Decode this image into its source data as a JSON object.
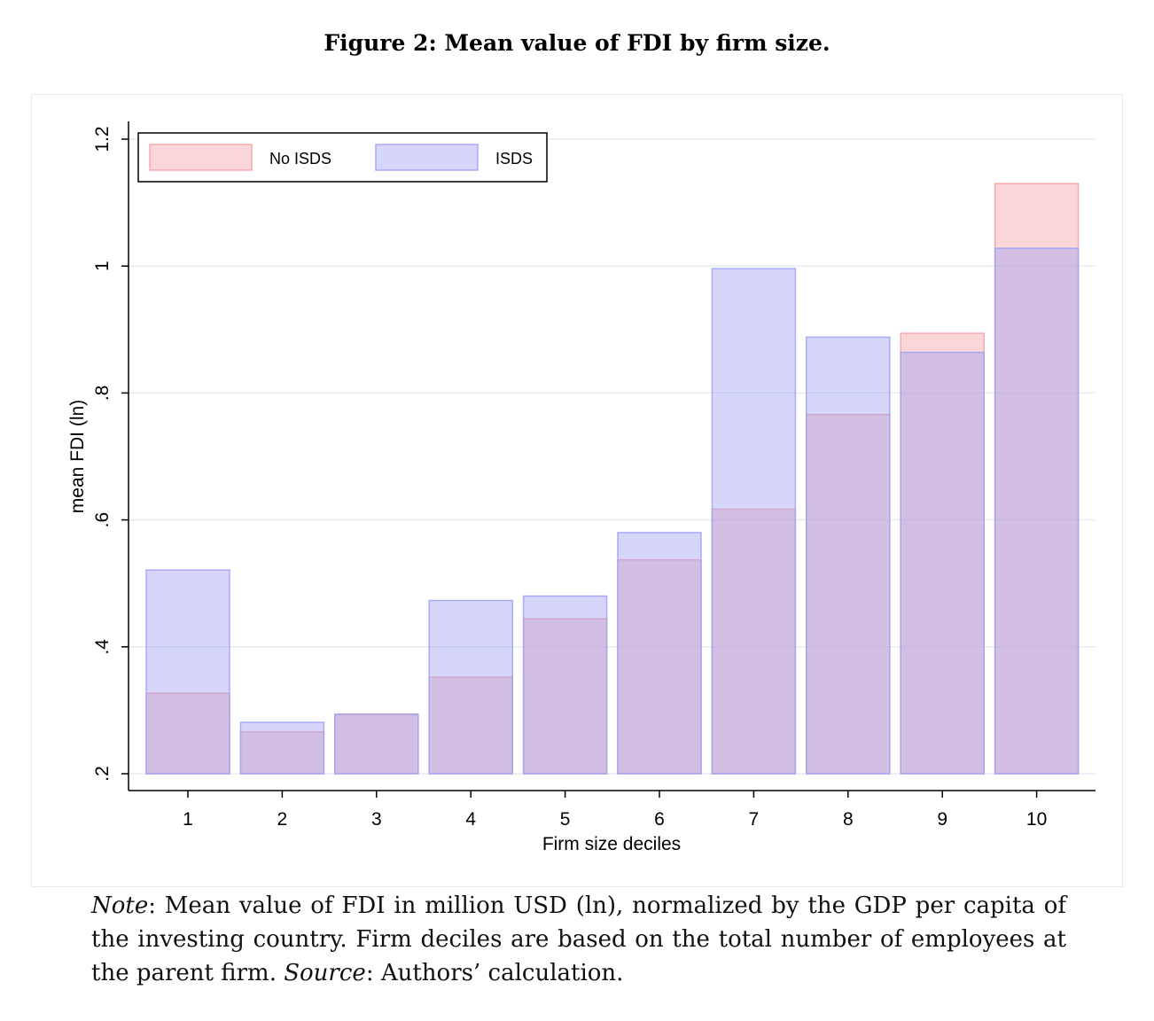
{
  "figure": {
    "title": "Figure 2: Mean value of FDI by firm size."
  },
  "chart_data": {
    "type": "bar",
    "xlabel": "Firm size deciles",
    "ylabel": "mean FDI (ln)",
    "ylim": [
      0.2,
      1.2
    ],
    "yticks": [
      0.2,
      0.4,
      0.6,
      0.8,
      1.0,
      1.2
    ],
    "ytick_labels": [
      ".2",
      ".4",
      ".6",
      ".8",
      "1",
      "1.2"
    ],
    "categories": [
      "1",
      "2",
      "3",
      "4",
      "5",
      "6",
      "7",
      "8",
      "9",
      "10"
    ],
    "grid": true,
    "legend_position": "top-left",
    "series": [
      {
        "name": "No ISDS",
        "color": "#f4a3a8",
        "values": [
          0.327,
          0.266,
          0.293,
          0.352,
          0.444,
          0.537,
          0.617,
          0.766,
          0.894,
          1.13
        ]
      },
      {
        "name": "ISDS",
        "color": "#a3a3f4",
        "values": [
          0.521,
          0.281,
          0.294,
          0.473,
          0.48,
          0.58,
          0.996,
          0.888,
          0.864,
          1.028
        ]
      }
    ]
  },
  "note": {
    "label": "Note",
    "text": ": Mean value of FDI in million USD (ln), normalized by the GDP per capita of the investing country. Firm deciles are based on the total number of employees at the parent firm. ",
    "source_label": "Source",
    "source_text": ": Authors’ calculation."
  }
}
